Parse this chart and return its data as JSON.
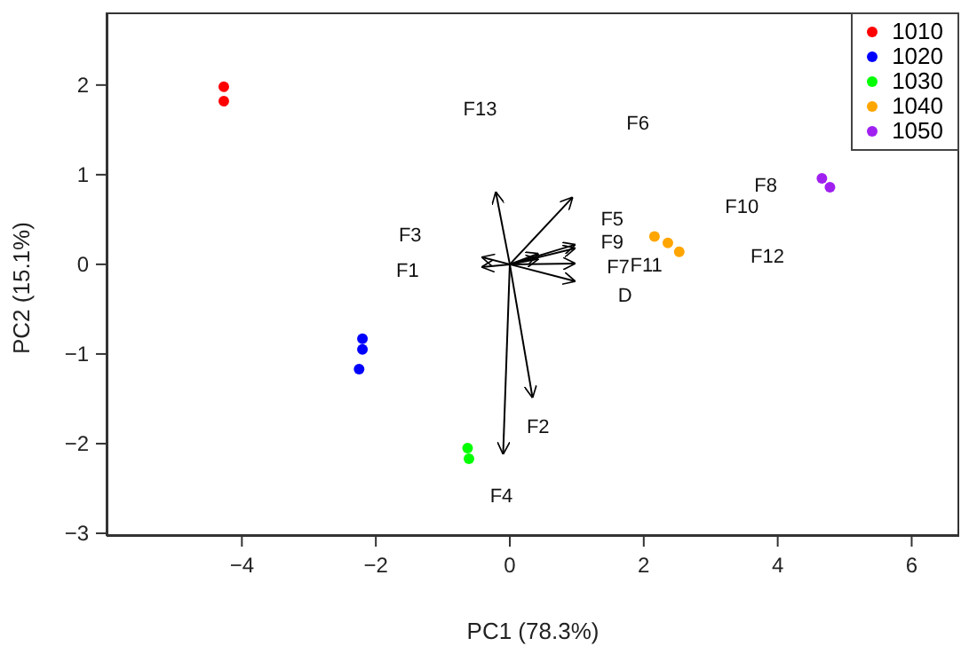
{
  "chart_data": {
    "type": "scatter",
    "xlabel": "PC1 (78.3%)",
    "ylabel": "PC2 (15.1%)",
    "xlim": [
      -6.02,
      6.71
    ],
    "ylim": [
      -3.03,
      2.81
    ],
    "xticks": [
      -4,
      -2,
      0,
      2,
      4,
      6
    ],
    "yticks": [
      -3,
      -2,
      -1,
      0,
      1,
      2
    ],
    "grid": false,
    "legend": "top right",
    "series": [
      {
        "name": "1010",
        "color": "#ff0000",
        "x": [
          -4.27,
          -4.27
        ],
        "values": [
          1.98,
          1.82
        ]
      },
      {
        "name": "1020",
        "color": "#0000ff",
        "x": [
          -2.2,
          -2.2,
          -2.25
        ],
        "values": [
          -0.83,
          -0.95,
          -1.17
        ]
      },
      {
        "name": "1030",
        "color": "#00ff00",
        "x": [
          -0.63,
          -0.61
        ],
        "values": [
          -2.05,
          -2.17
        ]
      },
      {
        "name": "1040",
        "color": "#ffa500",
        "x": [
          2.16,
          2.36,
          2.53
        ],
        "values": [
          0.31,
          0.24,
          0.14
        ]
      },
      {
        "name": "1050",
        "color": "#a020f0",
        "x": [
          4.66,
          4.78
        ],
        "values": [
          0.96,
          0.86
        ]
      },
      {
        "type": "line",
        "color": "#000000",
        "x": [
          0,
          -0.21
        ],
        "values": [
          0,
          0.81
        ]
      },
      {
        "type": "line",
        "color": "#000000",
        "x": [
          0,
          0.94
        ],
        "values": [
          0,
          0.75
        ]
      },
      {
        "type": "line",
        "color": "#000000",
        "x": [
          0,
          0.98
        ],
        "values": [
          0,
          0.22
        ]
      },
      {
        "type": "line",
        "color": "#000000",
        "x": [
          0,
          0.98
        ],
        "values": [
          0,
          0.18
        ]
      },
      {
        "type": "line",
        "color": "#000000",
        "x": [
          0,
          0.43
        ],
        "values": [
          0,
          0.12
        ]
      },
      {
        "type": "line",
        "color": "#000000",
        "x": [
          0,
          0.43
        ],
        "values": [
          0,
          0.06
        ]
      },
      {
        "type": "line",
        "color": "#000000",
        "x": [
          0,
          0.98
        ],
        "values": [
          0,
          0.01
        ]
      },
      {
        "type": "line",
        "color": "#000000",
        "x": [
          0,
          0.98
        ],
        "values": [
          0,
          -0.19
        ]
      },
      {
        "type": "line",
        "color": "#000000",
        "x": [
          0,
          -0.42
        ],
        "values": [
          0,
          0.08
        ]
      },
      {
        "type": "line",
        "color": "#000000",
        "x": [
          0,
          -0.42
        ],
        "values": [
          0,
          -0.03
        ]
      },
      {
        "type": "line",
        "color": "#000000",
        "x": [
          0,
          0.34
        ],
        "values": [
          0,
          -1.49
        ]
      },
      {
        "type": "line",
        "color": "#000000",
        "x": [
          0,
          -0.1
        ],
        "values": [
          0,
          -2.12
        ]
      }
    ],
    "annotations": [
      "F13",
      "F6",
      "F3",
      "F1",
      "F5",
      "F9",
      "F7",
      "F11",
      "D",
      "F10",
      "F8",
      "F12",
      "F2",
      "F4"
    ]
  }
}
